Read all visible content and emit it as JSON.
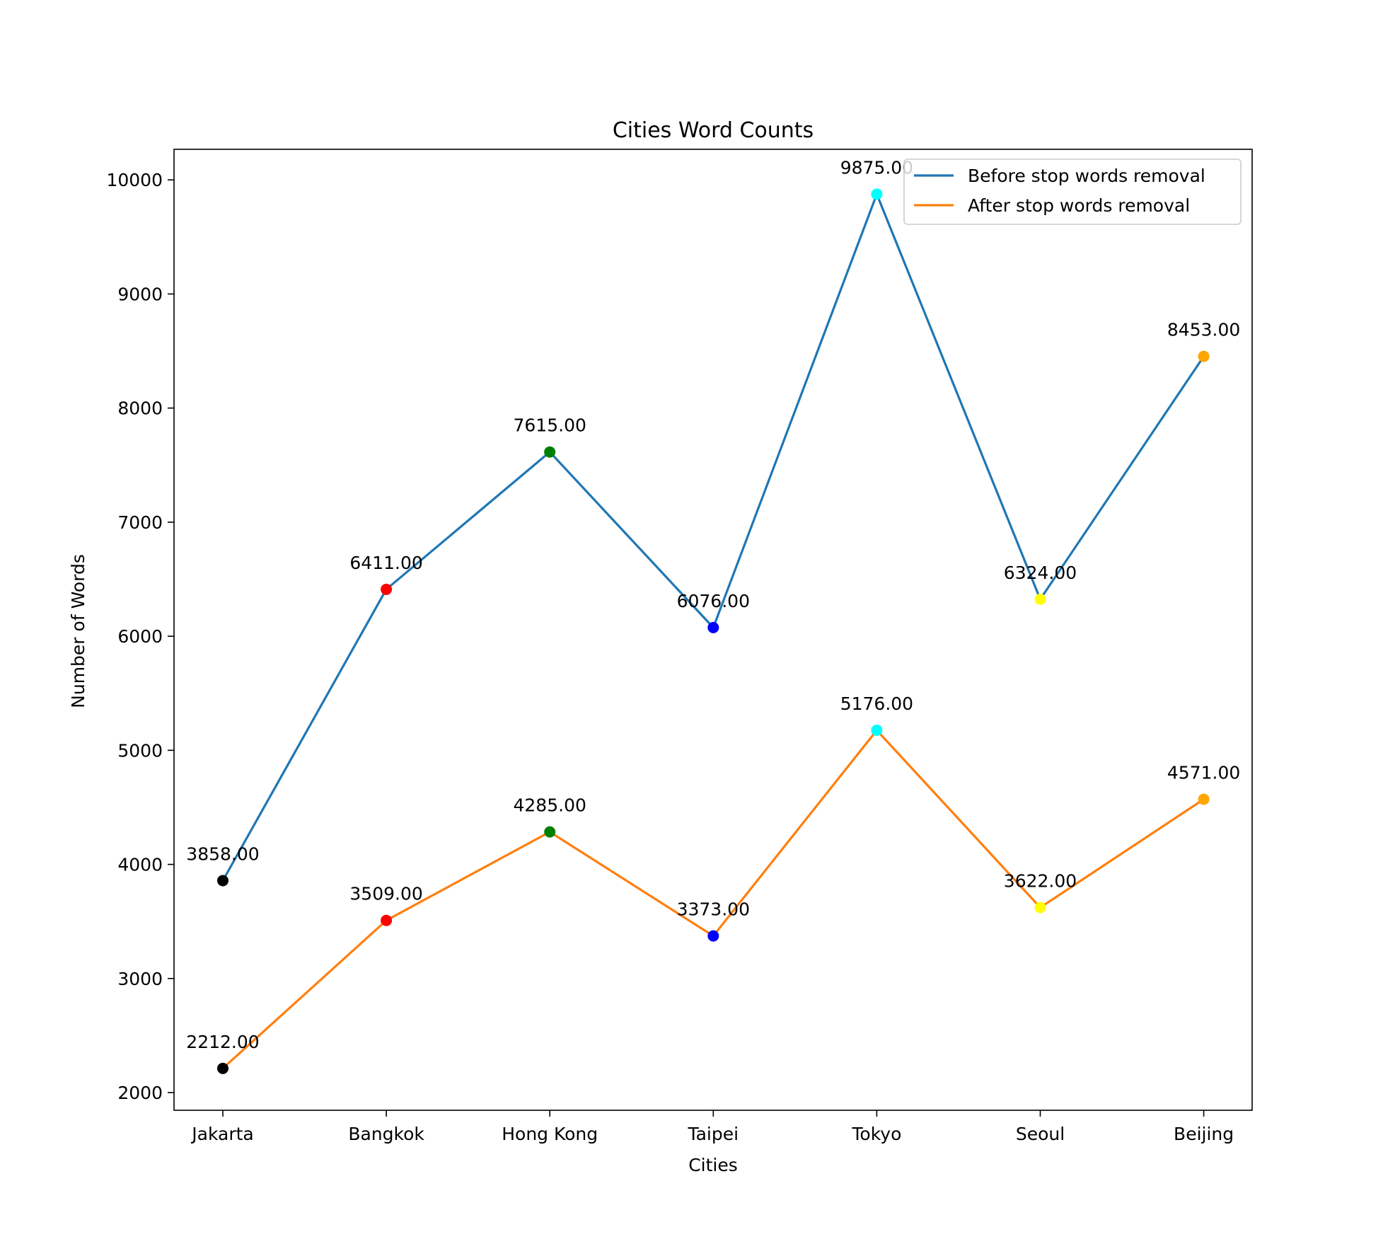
{
  "chart_data": {
    "type": "line",
    "title": "Cities Word Counts",
    "xlabel": "Cities",
    "ylabel": "Number of Words",
    "categories": [
      "Jakarta",
      "Bangkok",
      "Hong Kong",
      "Taipei",
      "Tokyo",
      "Seoul",
      "Beijing"
    ],
    "series": [
      {
        "name": "Before stop words removal",
        "line_color": "#1f77b4",
        "values": [
          3858,
          6411,
          7615,
          6076,
          9875,
          6324,
          8453
        ],
        "labels": [
          "3858.00",
          "6411.00",
          "7615.00",
          "6076.00",
          "9875.00",
          "6324.00",
          "8453.00"
        ]
      },
      {
        "name": "After stop words removal",
        "line_color": "#ff7f0e",
        "values": [
          2212,
          3509,
          4285,
          3373,
          5176,
          3622,
          4571
        ],
        "labels": [
          "2212.00",
          "3509.00",
          "4285.00",
          "3373.00",
          "5176.00",
          "3622.00",
          "4571.00"
        ]
      }
    ],
    "point_colors": [
      "#000000",
      "#ff0000",
      "#008000",
      "#0000ff",
      "#00ffff",
      "#ffff00",
      "#ffa500"
    ],
    "ylim": [
      1845,
      10268
    ],
    "yticks": [
      2000,
      3000,
      4000,
      5000,
      6000,
      7000,
      8000,
      9000,
      10000
    ],
    "grid": false,
    "legend_position": "top-right"
  }
}
